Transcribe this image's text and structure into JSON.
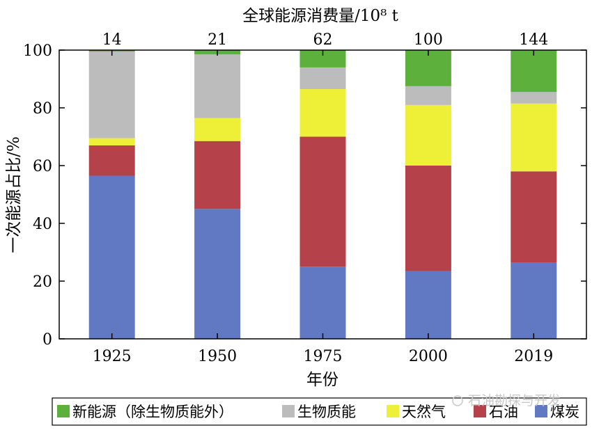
{
  "chart_data": {
    "type": "bar",
    "stacked": true,
    "categories": [
      "1925",
      "1950",
      "1975",
      "2000",
      "2019"
    ],
    "xlabel": "年份",
    "ylabel": "一次能源占比/%",
    "ylim": [
      0,
      100
    ],
    "yticks": [
      0,
      20,
      40,
      60,
      80,
      100
    ],
    "top_axis": {
      "label": "全球能源消费量/10⁸ t",
      "values": [
        "14",
        "21",
        "62",
        "100",
        "144"
      ]
    },
    "series": [
      {
        "name": "煤炭",
        "color": "#6079c2",
        "values": [
          56.5,
          45,
          25,
          23.5,
          26.5
        ]
      },
      {
        "name": "石油",
        "color": "#b5414a",
        "values": [
          10.5,
          23.5,
          45,
          36.5,
          31.5
        ]
      },
      {
        "name": "天然气",
        "color": "#eef037",
        "values": [
          2.5,
          8,
          16.5,
          21,
          23.5
        ]
      },
      {
        "name": "生物质能",
        "color": "#bcbcbc",
        "values": [
          30,
          22,
          7.5,
          6.5,
          4
        ]
      },
      {
        "name": "新能源（除生物质能外）",
        "color": "#5db03c",
        "values": [
          0.5,
          1.5,
          6,
          12.5,
          14.5
        ]
      }
    ],
    "grid": false,
    "legend_position": "bottom"
  },
  "watermark": "石油勘探与开发"
}
